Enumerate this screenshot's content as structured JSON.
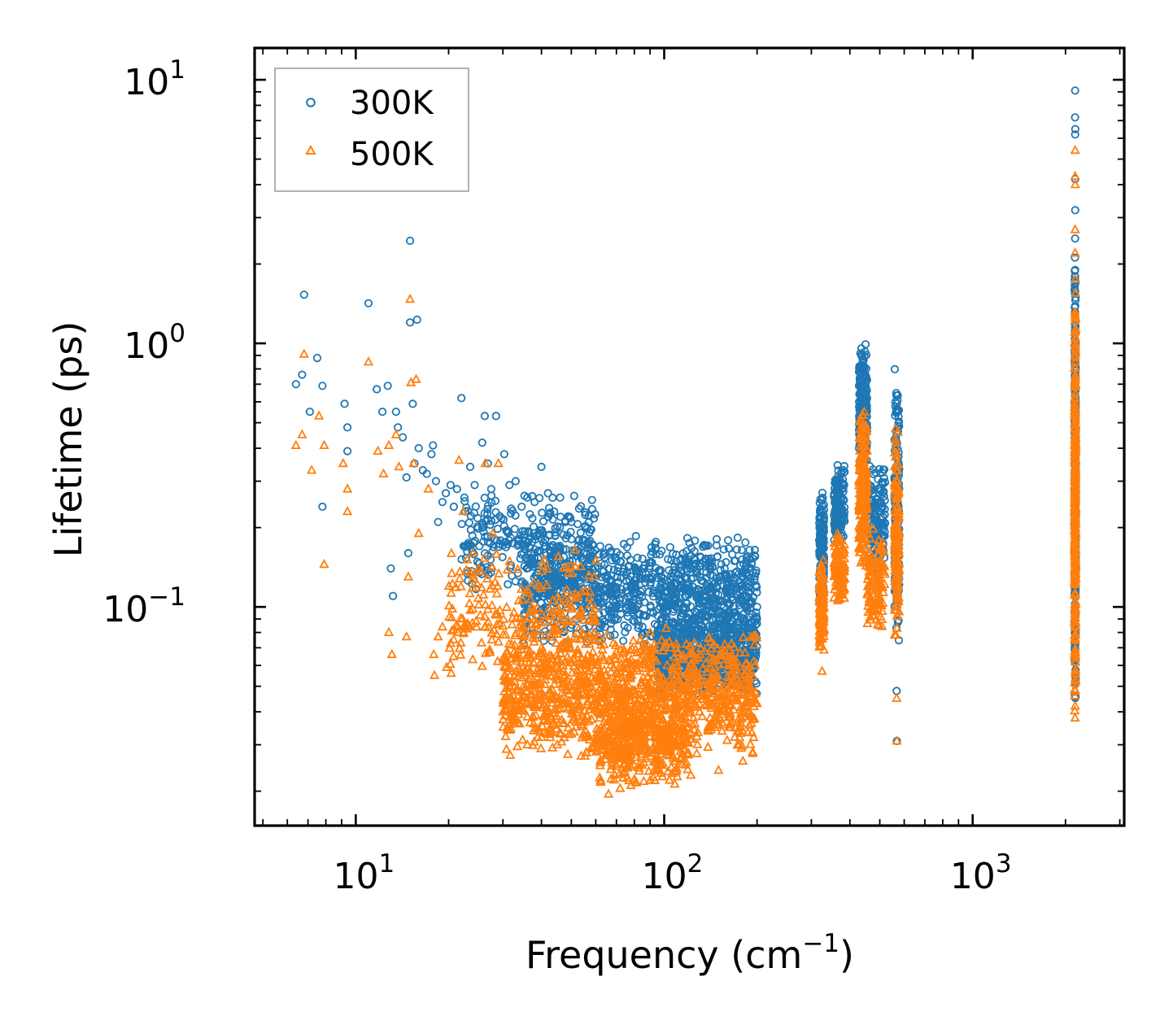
{
  "chart_data": {
    "type": "scatter",
    "xscale": "log",
    "yscale": "log",
    "xlabel": "Frequency (cm",
    "xlabel_sup": "−1",
    "xlabel_close": ")",
    "ylabel": "Lifetime (ps)",
    "xlim": [
      4.7,
      3100
    ],
    "ylim": [
      0.0148,
      13.2
    ],
    "x_ticks": [
      {
        "value": 10,
        "base": "10",
        "exp": "1"
      },
      {
        "value": 100,
        "base": "10",
        "exp": "2"
      },
      {
        "value": 1000,
        "base": "10",
        "exp": "3"
      }
    ],
    "y_ticks": [
      {
        "value": 0.1,
        "base": "10",
        "exp": "−1"
      },
      {
        "value": 1,
        "base": "10",
        "exp": "0"
      },
      {
        "value": 10,
        "base": "10",
        "exp": "1"
      }
    ],
    "legend": {
      "position": "top-left",
      "entries": [
        "300K",
        "500K"
      ]
    },
    "series": [
      {
        "name": "300K",
        "color": "#1f77b4",
        "marker": "circle",
        "points": [
          [
            6.4,
            0.7
          ],
          [
            6.7,
            0.76
          ],
          [
            6.8,
            1.53
          ],
          [
            7.1,
            0.55
          ],
          [
            7.5,
            0.88
          ],
          [
            7.8,
            0.69
          ],
          [
            7.8,
            0.24
          ],
          [
            9.2,
            0.59
          ],
          [
            9.4,
            0.48
          ],
          [
            9.4,
            0.39
          ],
          [
            11.0,
            1.42
          ],
          [
            11.7,
            0.67
          ],
          [
            12.2,
            0.55
          ],
          [
            12.7,
            0.69
          ],
          [
            13.0,
            0.14
          ],
          [
            13.2,
            0.11
          ],
          [
            13.5,
            0.55
          ],
          [
            13.7,
            0.48
          ],
          [
            14.2,
            0.44
          ],
          [
            14.6,
            0.31
          ],
          [
            14.8,
            0.16
          ],
          [
            15.0,
            2.45
          ],
          [
            15.0,
            1.2
          ],
          [
            15.3,
            0.59
          ],
          [
            15.8,
            1.23
          ],
          [
            15.5,
            0.35
          ],
          [
            16.0,
            0.4
          ],
          [
            16.5,
            0.33
          ],
          [
            17.0,
            0.32
          ],
          [
            17.6,
            0.38
          ],
          [
            17.8,
            0.41
          ],
          [
            18.2,
            0.3
          ],
          [
            18.5,
            0.21
          ],
          [
            19.1,
            0.25
          ],
          [
            19.6,
            0.27
          ],
          [
            20.3,
            0.29
          ],
          [
            20.8,
            0.24
          ],
          [
            21.3,
            0.28
          ],
          [
            22.0,
            0.62
          ],
          [
            22.5,
            0.26
          ],
          [
            23.5,
            0.34
          ],
          [
            24.3,
            0.29
          ],
          [
            25.7,
            0.42
          ],
          [
            26.2,
            0.53
          ],
          [
            26.8,
            0.35
          ],
          [
            27.5,
            0.28
          ],
          [
            28.5,
            0.53
          ],
          [
            30.3,
            0.38
          ],
          [
            31.5,
            0.29
          ],
          [
            33.0,
            0.3
          ],
          [
            34.5,
            0.24
          ],
          [
            36.0,
            0.26
          ],
          [
            38.0,
            0.25
          ],
          [
            40.0,
            0.34
          ],
          [
            42.0,
            0.27
          ],
          [
            44.0,
            0.23
          ],
          [
            46.0,
            0.26
          ],
          [
            50.0,
            0.21
          ],
          [
            53.0,
            0.18
          ],
          [
            57.0,
            0.21
          ],
          [
            62.0,
            0.17
          ],
          [
            70.0,
            0.15
          ],
          [
            78.0,
            0.12
          ],
          [
            86.0,
            0.14
          ],
          [
            96.0,
            0.08
          ],
          [
            116.0,
            0.1
          ],
          [
            137.0,
            0.11
          ],
          [
            160.0,
            0.09
          ],
          [
            185.0,
            0.11
          ],
          [
            200.0,
            0.1
          ],
          [
            567.0,
            0.048
          ],
          [
            568.0,
            0.031
          ],
          [
            2150,
            9.1
          ],
          [
            2148,
            7.2
          ],
          [
            2152,
            6.5
          ],
          [
            2150,
            6.2
          ],
          [
            2149,
            4.2
          ],
          [
            2151,
            3.2
          ],
          [
            2150,
            2.5
          ],
          [
            2149,
            1.9
          ]
        ],
        "clusters": [
          {
            "x": [
              35,
              200
            ],
            "y": [
              0.07,
              0.19
            ],
            "n": 1000
          },
          {
            "x": [
              22,
              60
            ],
            "y": [
              0.11,
              0.28
            ],
            "n": 280
          },
          {
            "x": [
              95,
              200
            ],
            "y": [
              0.045,
              0.1
            ],
            "n": 700
          },
          {
            "x": [
              318,
              330
            ],
            "y": [
              0.1,
              0.28
            ],
            "n": 150
          },
          {
            "x": [
              355,
              385
            ],
            "y": [
              0.16,
              0.37
            ],
            "n": 140
          },
          {
            "x": [
              428,
              455
            ],
            "y": [
              0.3,
              1.02
            ],
            "n": 280
          },
          {
            "x": [
              455,
              520
            ],
            "y": [
              0.13,
              0.36
            ],
            "n": 140
          },
          {
            "x": [
              558,
              578
            ],
            "y": [
              0.07,
              0.82
            ],
            "n": 170
          },
          {
            "x": [
              2142,
              2158
            ],
            "y": [
              0.035,
              2.5
            ],
            "n": 360
          }
        ]
      },
      {
        "name": "500K",
        "color": "#ff7f0e",
        "marker": "triangle",
        "points": [
          [
            6.4,
            0.41
          ],
          [
            6.7,
            0.45
          ],
          [
            6.8,
            0.91
          ],
          [
            7.2,
            0.33
          ],
          [
            7.6,
            0.53
          ],
          [
            7.9,
            0.41
          ],
          [
            7.9,
            0.145
          ],
          [
            9.1,
            0.35
          ],
          [
            9.4,
            0.28
          ],
          [
            9.4,
            0.23
          ],
          [
            11.0,
            0.85
          ],
          [
            11.8,
            0.39
          ],
          [
            12.3,
            0.32
          ],
          [
            12.8,
            0.41
          ],
          [
            12.8,
            0.08
          ],
          [
            13.1,
            0.066
          ],
          [
            13.5,
            0.45
          ],
          [
            13.8,
            0.34
          ],
          [
            14.6,
            0.077
          ],
          [
            14.8,
            0.13
          ],
          [
            15.0,
            1.47
          ],
          [
            15.1,
            0.71
          ],
          [
            15.7,
            0.73
          ],
          [
            15.4,
            0.35
          ],
          [
            16.0,
            0.19
          ],
          [
            17.2,
            0.28
          ],
          [
            17.9,
            0.066
          ],
          [
            18.0,
            0.055
          ],
          [
            18.5,
            0.077
          ],
          [
            19.1,
            0.084
          ],
          [
            19.7,
            0.059
          ],
          [
            20.4,
            0.056
          ],
          [
            21.6,
            0.36
          ],
          [
            22.3,
            0.23
          ],
          [
            24.0,
            0.16
          ],
          [
            26.3,
            0.35
          ],
          [
            27.8,
            0.19
          ],
          [
            29.0,
            0.35
          ],
          [
            32.0,
            0.072
          ],
          [
            34.0,
            0.036
          ],
          [
            36.0,
            0.03
          ],
          [
            40.0,
            0.032
          ],
          [
            45.0,
            0.03
          ],
          [
            50.0,
            0.033
          ],
          [
            56.0,
            0.028
          ],
          [
            62.0,
            0.025
          ],
          [
            66.0,
            0.0195
          ],
          [
            72.0,
            0.0205
          ],
          [
            80.0,
            0.022
          ],
          [
            90.0,
            0.022
          ],
          [
            104.0,
            0.022
          ],
          [
            122.0,
            0.023
          ],
          [
            150.0,
            0.024
          ],
          [
            180.0,
            0.026
          ],
          [
            325.0,
            0.057
          ],
          [
            567.0,
            0.045
          ],
          [
            568.0,
            0.031
          ],
          [
            2150,
            5.4
          ],
          [
            2149,
            4.3
          ],
          [
            2151,
            4.0
          ],
          [
            2150,
            2.7
          ],
          [
            2149,
            2.2
          ],
          [
            2151,
            1.75
          ]
        ],
        "clusters": [
          {
            "x": [
              30,
              200
            ],
            "y": [
              0.026,
              0.085
            ],
            "n": 1250
          },
          {
            "x": [
              20,
              60
            ],
            "y": [
              0.05,
              0.17
            ],
            "n": 260
          },
          {
            "x": [
              60,
              120
            ],
            "y": [
              0.02,
              0.05
            ],
            "n": 420
          },
          {
            "x": [
              318,
              330
            ],
            "y": [
              0.065,
              0.16
            ],
            "n": 130
          },
          {
            "x": [
              355,
              385
            ],
            "y": [
              0.1,
              0.2
            ],
            "n": 110
          },
          {
            "x": [
              428,
              455
            ],
            "y": [
              0.13,
              0.58
            ],
            "n": 220
          },
          {
            "x": [
              455,
              520
            ],
            "y": [
              0.08,
              0.2
            ],
            "n": 120
          },
          {
            "x": [
              558,
              578
            ],
            "y": [
              0.07,
              0.52
            ],
            "n": 150
          },
          {
            "x": [
              2142,
              2158
            ],
            "y": [
              0.033,
              1.6
            ],
            "n": 340
          }
        ]
      }
    ]
  }
}
